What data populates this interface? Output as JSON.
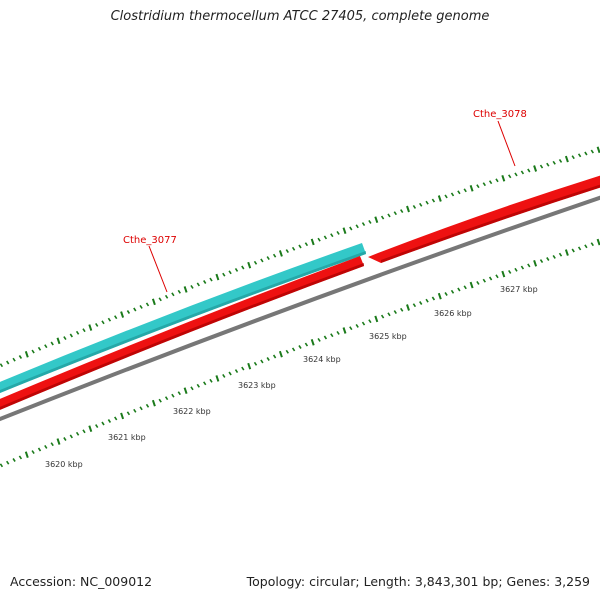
{
  "title": "Clostridium thermocellum ATCC 27405, complete genome",
  "footer": {
    "accession": "Accession: NC_009012",
    "summary": "Topology: circular; Length: 3,843,301 bp; Genes: 3,259"
  },
  "genes": [
    {
      "id": "Cthe_3077",
      "strand": "+",
      "color": "#33c8c8"
    },
    {
      "id": "Cthe_3078",
      "strand": "-",
      "color": "#ee1111"
    }
  ],
  "tick_labels": [
    "3620 kbp",
    "3621 kbp",
    "3622 kbp",
    "3623 kbp",
    "3624 kbp",
    "3625 kbp",
    "3626 kbp",
    "3627 kbp"
  ],
  "colors": {
    "forward_gene": "#33c8c8",
    "reverse_gene": "#ee1111",
    "backbone": "#777777",
    "tick": "#1a7a1a",
    "label": "#dd0000"
  }
}
